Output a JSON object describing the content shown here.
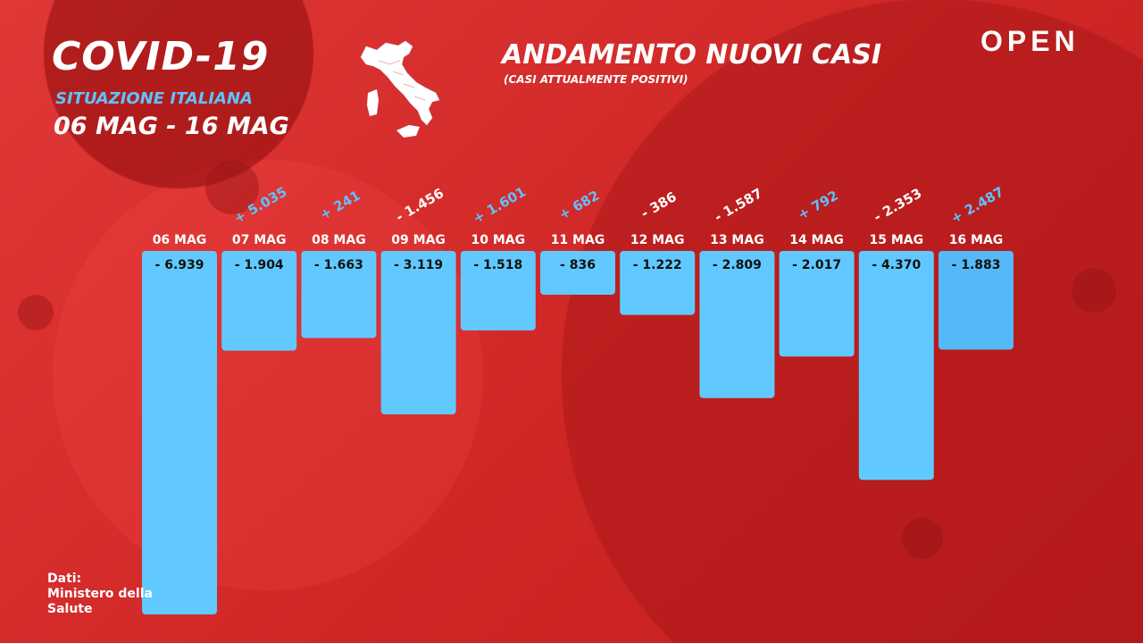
{
  "header": {
    "title": "COVID-19",
    "subtitle": "SITUAZIONE ITALIANA",
    "date_range": "06 MAG - 16 MAG"
  },
  "map_icon": "italy-map-icon",
  "brand": {
    "logo": "OPEN"
  },
  "chart_data": {
    "type": "bar",
    "title": "ANDAMENTO NUOVI CASI",
    "subtitle": "(CASI ATTUALMENTE POSITIVI)",
    "categories": [
      "06 MAG",
      "07 MAG",
      "08 MAG",
      "09 MAG",
      "10 MAG",
      "11 MAG",
      "12 MAG",
      "13 MAG",
      "14 MAG",
      "15 MAG",
      "16 MAG"
    ],
    "values": [
      -6939,
      -1904,
      -1663,
      -3119,
      -1518,
      -836,
      -1222,
      -2809,
      -2017,
      -4370,
      -1883
    ],
    "value_labels": [
      "- 6.939",
      "- 1.904",
      "- 1.663",
      "- 3.119",
      "- 1.518",
      "- 836",
      "- 1.222",
      "- 2.809",
      "- 2.017",
      "- 4.370",
      "- 1.883"
    ],
    "changes": [
      null,
      5035,
      241,
      -1456,
      1601,
      682,
      -386,
      -1587,
      792,
      -2353,
      2487
    ],
    "change_labels": [
      "",
      "+ 5.035",
      "+ 241",
      "- 1.456",
      "+ 1.601",
      "+ 682",
      "- 386",
      "- 1.587",
      "+ 792",
      "- 2.353",
      "+ 2.487"
    ],
    "ylim": [
      -6939,
      0
    ],
    "colors": {
      "bar": "#61c9ff",
      "bar_last": "#55b9f7",
      "positive_change": "#5fc3ff",
      "negative_change": "#ffffff",
      "background": "#d42a2a"
    }
  },
  "source": {
    "label": "Dati:",
    "name": "Ministero della Salute"
  }
}
